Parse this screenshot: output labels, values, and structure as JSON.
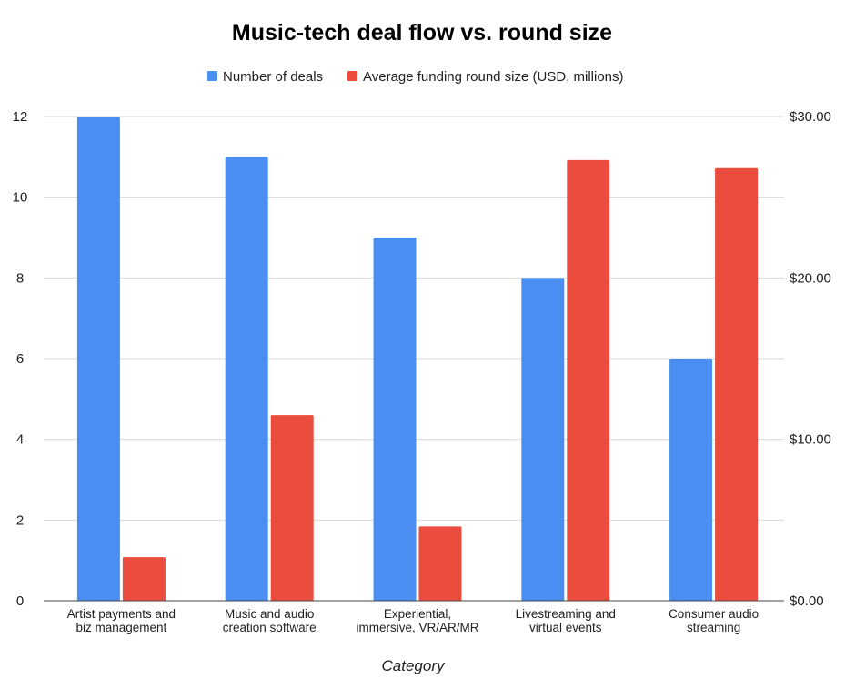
{
  "chart_data": {
    "type": "bar",
    "title": "Music-tech deal flow vs. round size",
    "xlabel": "Category",
    "categories": [
      [
        "Artist payments and",
        "biz management"
      ],
      [
        "Music and audio",
        "creation software"
      ],
      [
        "Experiential,",
        "immersive, VR/AR/MR"
      ],
      [
        "Livestreaming and",
        "virtual events"
      ],
      [
        "Consumer audio",
        "streaming"
      ]
    ],
    "series": [
      {
        "name": "Number of deals",
        "axis": "left",
        "color": "#4a8ef2",
        "values": [
          12,
          11,
          9,
          8,
          6
        ]
      },
      {
        "name": "Average funding round size (USD, millions)",
        "axis": "right",
        "color": "#ea4d3d",
        "values": [
          2.7,
          11.5,
          4.6,
          27.3,
          26.8
        ]
      }
    ],
    "y_left": {
      "ylim": [
        0,
        12
      ],
      "ticks": [
        "0",
        "2",
        "4",
        "6",
        "8",
        "10",
        "12"
      ]
    },
    "y_right": {
      "ylim": [
        0,
        30
      ],
      "ticks": [
        "$0.00",
        "$10.00",
        "$20.00",
        "$30.00"
      ]
    },
    "grid": true,
    "legend_position": "top-center"
  }
}
